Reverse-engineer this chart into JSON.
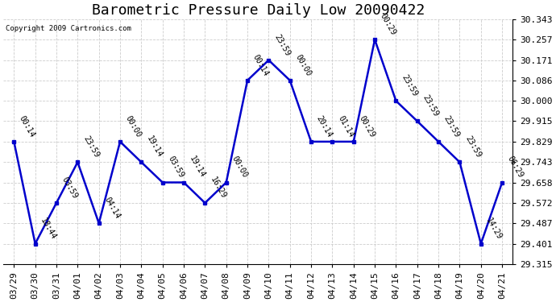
{
  "title": "Barometric Pressure Daily Low 20090422",
  "copyright": "Copyright 2009 Cartronics.com",
  "background_color": "#ffffff",
  "grid_color": "#cccccc",
  "line_color": "#0000cc",
  "marker_color": "#0000cc",
  "x_labels": [
    "03/29",
    "03/30",
    "03/31",
    "04/01",
    "04/02",
    "04/03",
    "04/04",
    "04/05",
    "04/06",
    "04/07",
    "04/08",
    "04/09",
    "04/10",
    "04/11",
    "04/12",
    "04/13",
    "04/14",
    "04/15",
    "04/16",
    "04/17",
    "04/18",
    "04/19",
    "04/20",
    "04/21"
  ],
  "y_values": [
    29.829,
    29.401,
    29.572,
    29.743,
    29.487,
    29.829,
    29.743,
    29.658,
    29.658,
    29.572,
    29.658,
    30.086,
    30.171,
    30.086,
    29.829,
    29.829,
    29.829,
    30.257,
    30.0,
    29.915,
    29.829,
    29.743,
    29.401,
    29.658
  ],
  "point_labels": [
    "00:14",
    "18:44",
    "03:59",
    "23:59",
    "04:14",
    "00:00",
    "19:14",
    "03:59",
    "19:14",
    "16:29",
    "00:00",
    "00:14",
    "23:59",
    "00:00",
    "20:14",
    "01:14",
    "00:29",
    "00:29",
    "23:59",
    "23:59",
    "23:59",
    "23:59",
    "14:29",
    "06:29"
  ],
  "ylim_min": 29.315,
  "ylim_max": 30.343,
  "yticks": [
    29.315,
    29.401,
    29.487,
    29.572,
    29.658,
    29.743,
    29.829,
    29.915,
    30.0,
    30.086,
    30.171,
    30.257,
    30.343
  ],
  "title_fontsize": 13,
  "tick_fontsize": 8,
  "label_fontsize": 7,
  "label_rotation": -60,
  "figwidth": 6.9,
  "figheight": 3.75,
  "dpi": 100
}
